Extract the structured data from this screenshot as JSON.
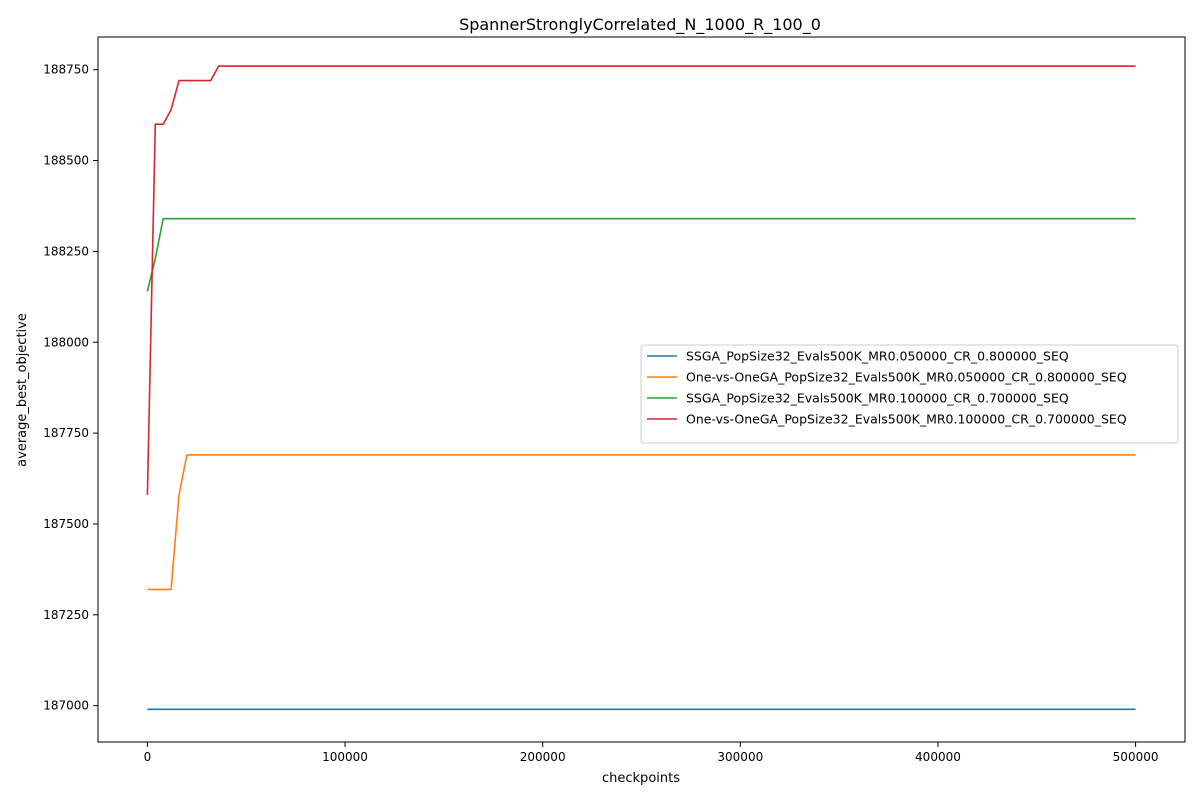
{
  "chart_data": {
    "type": "line",
    "title": "SpannerStronglyCorrelated_N_1000_R_100_0",
    "xlabel": "checkpoints",
    "ylabel": "average_best_objective",
    "xlim": [
      -25000,
      525000
    ],
    "ylim": [
      186900,
      188840
    ],
    "xticks": [
      0,
      100000,
      200000,
      300000,
      400000,
      500000
    ],
    "yticks": [
      187000,
      187250,
      187500,
      187750,
      188000,
      188250,
      188500,
      188750
    ],
    "grid": false,
    "legend_position": "center-right",
    "series": [
      {
        "name": "SSGA_PopSize32_Evals500K_MR0.050000_CR_0.800000_SEQ",
        "color": "#1f77b4",
        "x": [
          0,
          500000
        ],
        "y": [
          186990,
          186990
        ]
      },
      {
        "name": "One-vs-OneGA_PopSize32_Evals500K_MR0.050000_CR_0.800000_SEQ",
        "color": "#ff7f0e",
        "x": [
          0,
          4000,
          8000,
          12000,
          16000,
          20000,
          500000
        ],
        "y": [
          187320,
          187320,
          187320,
          187320,
          187580,
          187690,
          187690
        ]
      },
      {
        "name": "SSGA_PopSize32_Evals500K_MR0.100000_CR_0.700000_SEQ",
        "color": "#2ca02c",
        "x": [
          0,
          4000,
          8000,
          500000
        ],
        "y": [
          188140,
          188230,
          188340,
          188340
        ]
      },
      {
        "name": "One-vs-OneGA_PopSize32_Evals500K_MR0.100000_CR_0.700000_SEQ",
        "color": "#d62728",
        "x": [
          0,
          4000,
          8000,
          12000,
          16000,
          20000,
          24000,
          28000,
          32000,
          36000,
          500000
        ],
        "y": [
          187580,
          188600,
          188600,
          188640,
          188720,
          188720,
          188720,
          188720,
          188720,
          188760,
          188760
        ]
      }
    ]
  }
}
